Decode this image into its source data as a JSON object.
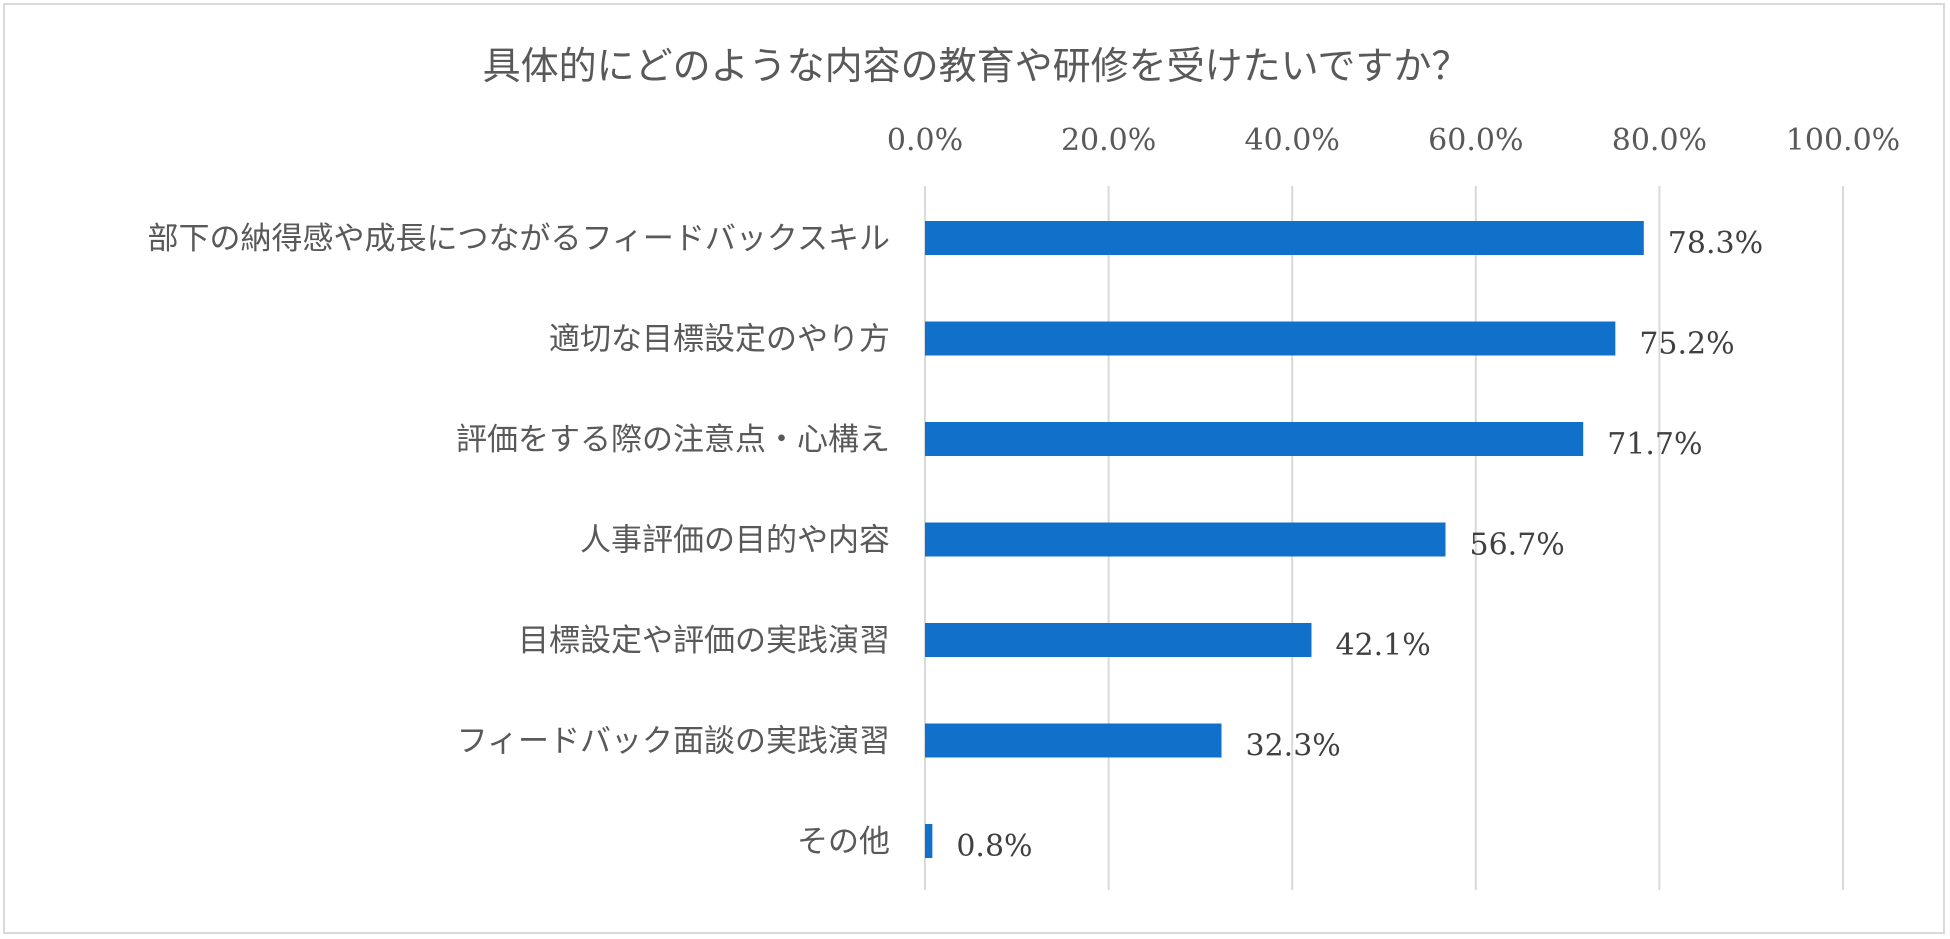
{
  "chart_data": {
    "type": "bar",
    "orientation": "horizontal",
    "title": "具体的にどのような内容の教育や研修を受けたいですか？",
    "xlim": [
      0,
      100
    ],
    "tick_values": [
      0,
      20,
      40,
      60,
      80,
      100
    ],
    "tick_labels": [
      "0.0%",
      "20.0%",
      "40.0%",
      "60.0%",
      "80.0%",
      "100.0%"
    ],
    "axis_position": "top",
    "grid": true,
    "categories": [
      "部下の納得感や成長につながるフィードバックスキル",
      "適切な目標設定のやり方",
      "評価をする際の注意点・心構え",
      "人事評価の目的や内容",
      "目標設定や評価の実践演習",
      "フィードバック面談の実践演習",
      "その他"
    ],
    "values": [
      78.3,
      75.2,
      71.7,
      56.7,
      42.1,
      32.3,
      0.8
    ],
    "data_labels": [
      "78.3%",
      "75.2%",
      "71.7%",
      "56.7%",
      "42.1%",
      "32.3%",
      "0.8%"
    ],
    "bar_color": "#1170c9",
    "grid_color": "#d9d9d9"
  }
}
